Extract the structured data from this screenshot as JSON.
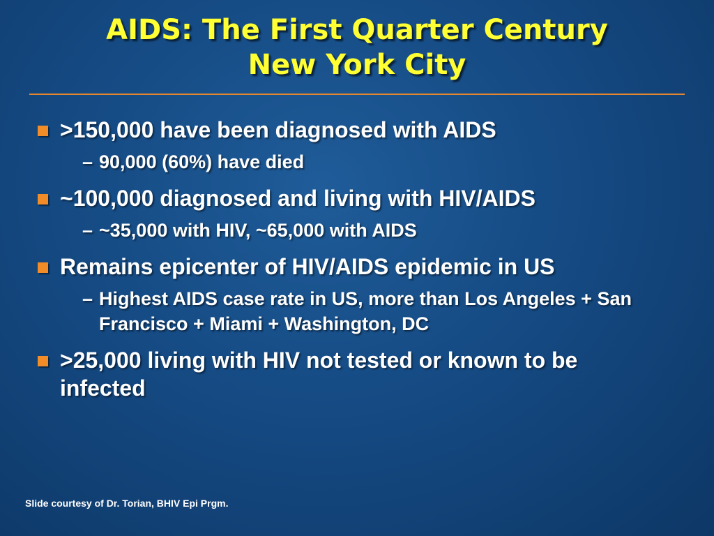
{
  "slide": {
    "title_line1": "AIDS: The First Quarter Century",
    "title_line2": "New York City",
    "bullets": [
      {
        "text": ">150,000 have been diagnosed with AIDS",
        "sub": "90,000 (60%) have died"
      },
      {
        "text": "~100,000 diagnosed and living with HIV/AIDS",
        "sub": "~35,000 with HIV, ~65,000 with AIDS"
      },
      {
        "text": "Remains epicenter of HIV/AIDS epidemic in US",
        "sub": "Highest AIDS case rate in US, more than Los Angeles + San Francisco + Miami + Washington, DC"
      },
      {
        "text": ">25,000 living with HIV not tested or known to be infected"
      }
    ],
    "dash_glyph": "–",
    "footer": "Slide courtesy of Dr. Torian, BHIV Epi Prgm.",
    "colors": {
      "title": "#ffff33",
      "bullet": "#f28c28",
      "divider": "#e3872f",
      "background": "#154a83"
    }
  }
}
